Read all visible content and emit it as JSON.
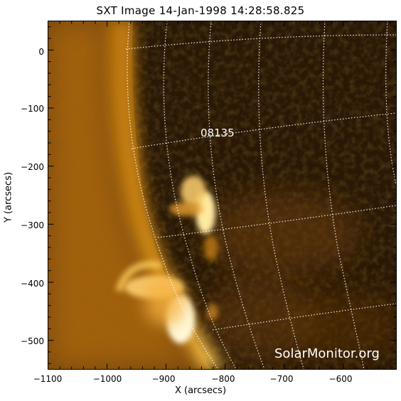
{
  "title": "SXT Image 14-Jan-1998 14:28:58.825",
  "region_label": "08135",
  "watermark": "SolarMonitor.org",
  "axes": {
    "xlabel": "X (arcsecs)",
    "ylabel": "Y (arcsecs)",
    "xticks": [
      "−1100",
      "−1000",
      "−900",
      "−800",
      "−700",
      "−600"
    ],
    "yticks": [
      "0",
      "−100",
      "−200",
      "−300",
      "−400",
      "−500"
    ],
    "xrange": [
      -1100,
      -510
    ],
    "yrange": [
      -550,
      50
    ]
  },
  "colors": {
    "disk": "#b36b00",
    "bright": "#fff3c0",
    "dark": "#1c1206",
    "grid": "#ffffff"
  }
}
